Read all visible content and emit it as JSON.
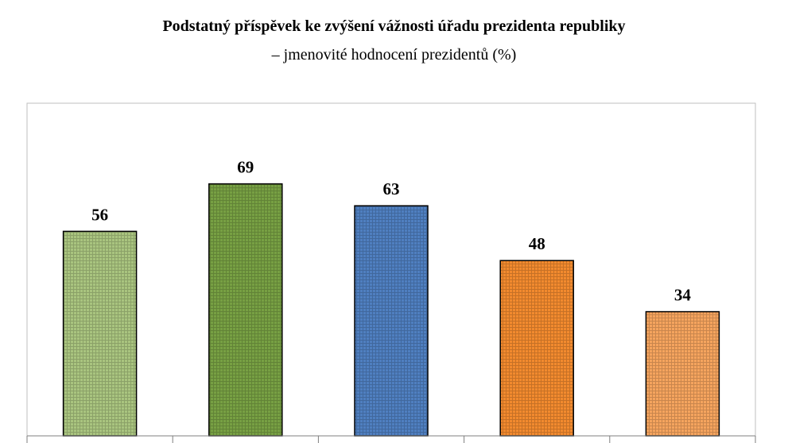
{
  "title": "Podstatný příspěvek ke zvýšení vážnosti úřadu prezidenta republiky",
  "subtitle": "– jmenovité hodnocení prezidentů (%)",
  "chart_data": {
    "type": "bar",
    "title": "Podstatný příspěvek ke zvýšení vážnosti úřadu prezidenta republiky",
    "subtitle": "– jmenovité hodnocení prezidentů (%)",
    "categories": [
      "",
      "",
      "",
      "",
      ""
    ],
    "values": [
      56,
      69,
      63,
      48,
      34
    ],
    "colors": [
      "#a9c47f",
      "#77a043",
      "#4f7fc0",
      "#f28a2e",
      "#f5a45e"
    ],
    "data_labels": [
      "56",
      "69",
      "63",
      "48",
      "34"
    ],
    "ylim": [
      0,
      100
    ],
    "grid": false,
    "legend": "none",
    "xlabel": "",
    "ylabel": ""
  }
}
